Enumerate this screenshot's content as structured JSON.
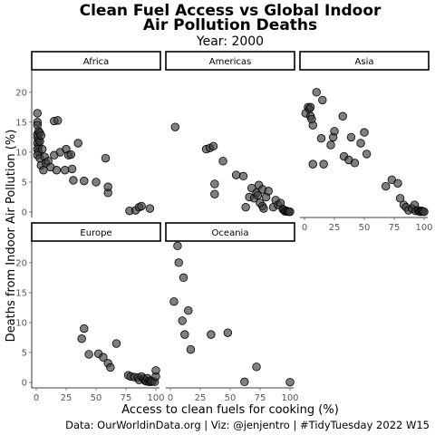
{
  "title_line1": "Clean Fuel Access vs Global Indoor",
  "title_line2": "Air Pollution Deaths",
  "subtitle": "Year: 2000",
  "caption": "Data: OurWorldinData.org | Viz: @jenjentro | #TidyTuesday 2022 W15",
  "chart_data": {
    "type": "scatter",
    "xlabel": "Access to clean fuels for cooking (%)",
    "ylabel": "Deaths from Indoor Air Pollution (%)",
    "xlim": [
      0,
      100
    ],
    "ylim": [
      0,
      23
    ],
    "x_ticks": [
      0,
      25,
      50,
      75,
      100
    ],
    "y_ticks": [
      0,
      5,
      10,
      15,
      20
    ],
    "point_color": "#555555",
    "panels": [
      {
        "name": "Africa",
        "points": [
          [
            1,
            16.5
          ],
          [
            1,
            15
          ],
          [
            1,
            14.5
          ],
          [
            1,
            13
          ],
          [
            2,
            13.5
          ],
          [
            1,
            12.5
          ],
          [
            3,
            13.2
          ],
          [
            2,
            12
          ],
          [
            1,
            11.5
          ],
          [
            2,
            11
          ],
          [
            1,
            10.5
          ],
          [
            2,
            10
          ],
          [
            3,
            11.8
          ],
          [
            4,
            12.8
          ],
          [
            1,
            9.5
          ],
          [
            3,
            9
          ],
          [
            5,
            10.5
          ],
          [
            4,
            7.8
          ],
          [
            6,
            7
          ],
          [
            7,
            9.2
          ],
          [
            8,
            8.2
          ],
          [
            10,
            8.5
          ],
          [
            12,
            7.5
          ],
          [
            15,
            15.2
          ],
          [
            18,
            15.3
          ],
          [
            15,
            9.5
          ],
          [
            17,
            7
          ],
          [
            20,
            10
          ],
          [
            24,
            7
          ],
          [
            25,
            10.5
          ],
          [
            27,
            9.5
          ],
          [
            29,
            9.6
          ],
          [
            30,
            7.2
          ],
          [
            31,
            5.3
          ],
          [
            35,
            11.5
          ],
          [
            40,
            5.2
          ],
          [
            50,
            5
          ],
          [
            58,
            9
          ],
          [
            60,
            3.2
          ],
          [
            60,
            4.2
          ],
          [
            78,
            0.2
          ],
          [
            83,
            0.3
          ],
          [
            86,
            0.8
          ],
          [
            88,
            1
          ],
          [
            95,
            0.6
          ]
        ]
      },
      {
        "name": "Americas",
        "points": [
          [
            4,
            14.2
          ],
          [
            30,
            10.5
          ],
          [
            33,
            10.7
          ],
          [
            36,
            11
          ],
          [
            37,
            4.7
          ],
          [
            37,
            3
          ],
          [
            44,
            8.5
          ],
          [
            55,
            6.2
          ],
          [
            61,
            6
          ],
          [
            63,
            0.8
          ],
          [
            66,
            2.5
          ],
          [
            68,
            4
          ],
          [
            70,
            2.3
          ],
          [
            72,
            3.2
          ],
          [
            73,
            2.8
          ],
          [
            74,
            4.5
          ],
          [
            75,
            1.5
          ],
          [
            77,
            3.8
          ],
          [
            77,
            1
          ],
          [
            78,
            0.6
          ],
          [
            80,
            2.5
          ],
          [
            82,
            3.5
          ],
          [
            86,
            0.8
          ],
          [
            88,
            2
          ],
          [
            90,
            1.2
          ],
          [
            92,
            1.5
          ],
          [
            94,
            0.5
          ],
          [
            95,
            0.3
          ],
          [
            96,
            0.1
          ],
          [
            97,
            0.2
          ],
          [
            98,
            0.1
          ],
          [
            99,
            0.05
          ],
          [
            100,
            0.05
          ]
        ]
      },
      {
        "name": "Asia",
        "points": [
          [
            1,
            16.5
          ],
          [
            3,
            17.5
          ],
          [
            4,
            17.2
          ],
          [
            5,
            17.5
          ],
          [
            5,
            16
          ],
          [
            6,
            15.5
          ],
          [
            7,
            14.5
          ],
          [
            7,
            8
          ],
          [
            10,
            20
          ],
          [
            14,
            12.3
          ],
          [
            15,
            18.7
          ],
          [
            16,
            8
          ],
          [
            22,
            11.2
          ],
          [
            24,
            12.5
          ],
          [
            25,
            13.5
          ],
          [
            32,
            16
          ],
          [
            33,
            9.3
          ],
          [
            37,
            8.7
          ],
          [
            39,
            12.5
          ],
          [
            42,
            8.2
          ],
          [
            47,
            11.5
          ],
          [
            50,
            13.3
          ],
          [
            52,
            9.7
          ],
          [
            68,
            4.3
          ],
          [
            73,
            5.4
          ],
          [
            78,
            4.8
          ],
          [
            80,
            2.3
          ],
          [
            83,
            1.2
          ],
          [
            85,
            0.8
          ],
          [
            87,
            0.3
          ],
          [
            90,
            0.6
          ],
          [
            92,
            1.2
          ],
          [
            93,
            0.2
          ],
          [
            95,
            0.3
          ],
          [
            96,
            0.1
          ],
          [
            97,
            0.05
          ],
          [
            98,
            0.2
          ],
          [
            99,
            0.1
          ],
          [
            100,
            0.05
          ]
        ]
      },
      {
        "name": "Europe",
        "points": [
          [
            38,
            7.3
          ],
          [
            40,
            9
          ],
          [
            44,
            4.7
          ],
          [
            52,
            4.8
          ],
          [
            56,
            4.2
          ],
          [
            60,
            3.2
          ],
          [
            62,
            2.5
          ],
          [
            67,
            6.5
          ],
          [
            77,
            1.2
          ],
          [
            79,
            1
          ],
          [
            82,
            0.9
          ],
          [
            85,
            0.8
          ],
          [
            86,
            0.4
          ],
          [
            88,
            1
          ],
          [
            90,
            0.6
          ],
          [
            91,
            0.3
          ],
          [
            92,
            0.2
          ],
          [
            93,
            0.7
          ],
          [
            94,
            0.1
          ],
          [
            95,
            0.3
          ],
          [
            96,
            0.1
          ],
          [
            97,
            0.2
          ],
          [
            99,
            0.1
          ],
          [
            100,
            1
          ],
          [
            100,
            2
          ]
        ]
      },
      {
        "name": "Oceania",
        "points": [
          [
            3,
            13.5
          ],
          [
            6,
            22.8
          ],
          [
            7,
            20
          ],
          [
            10,
            10.3
          ],
          [
            11,
            17.5
          ],
          [
            12,
            8
          ],
          [
            15,
            12
          ],
          [
            17,
            5.5
          ],
          [
            34,
            8
          ],
          [
            48,
            8.3
          ],
          [
            62,
            0.1
          ],
          [
            72,
            2.6
          ],
          [
            100,
            0.05
          ]
        ]
      }
    ]
  }
}
